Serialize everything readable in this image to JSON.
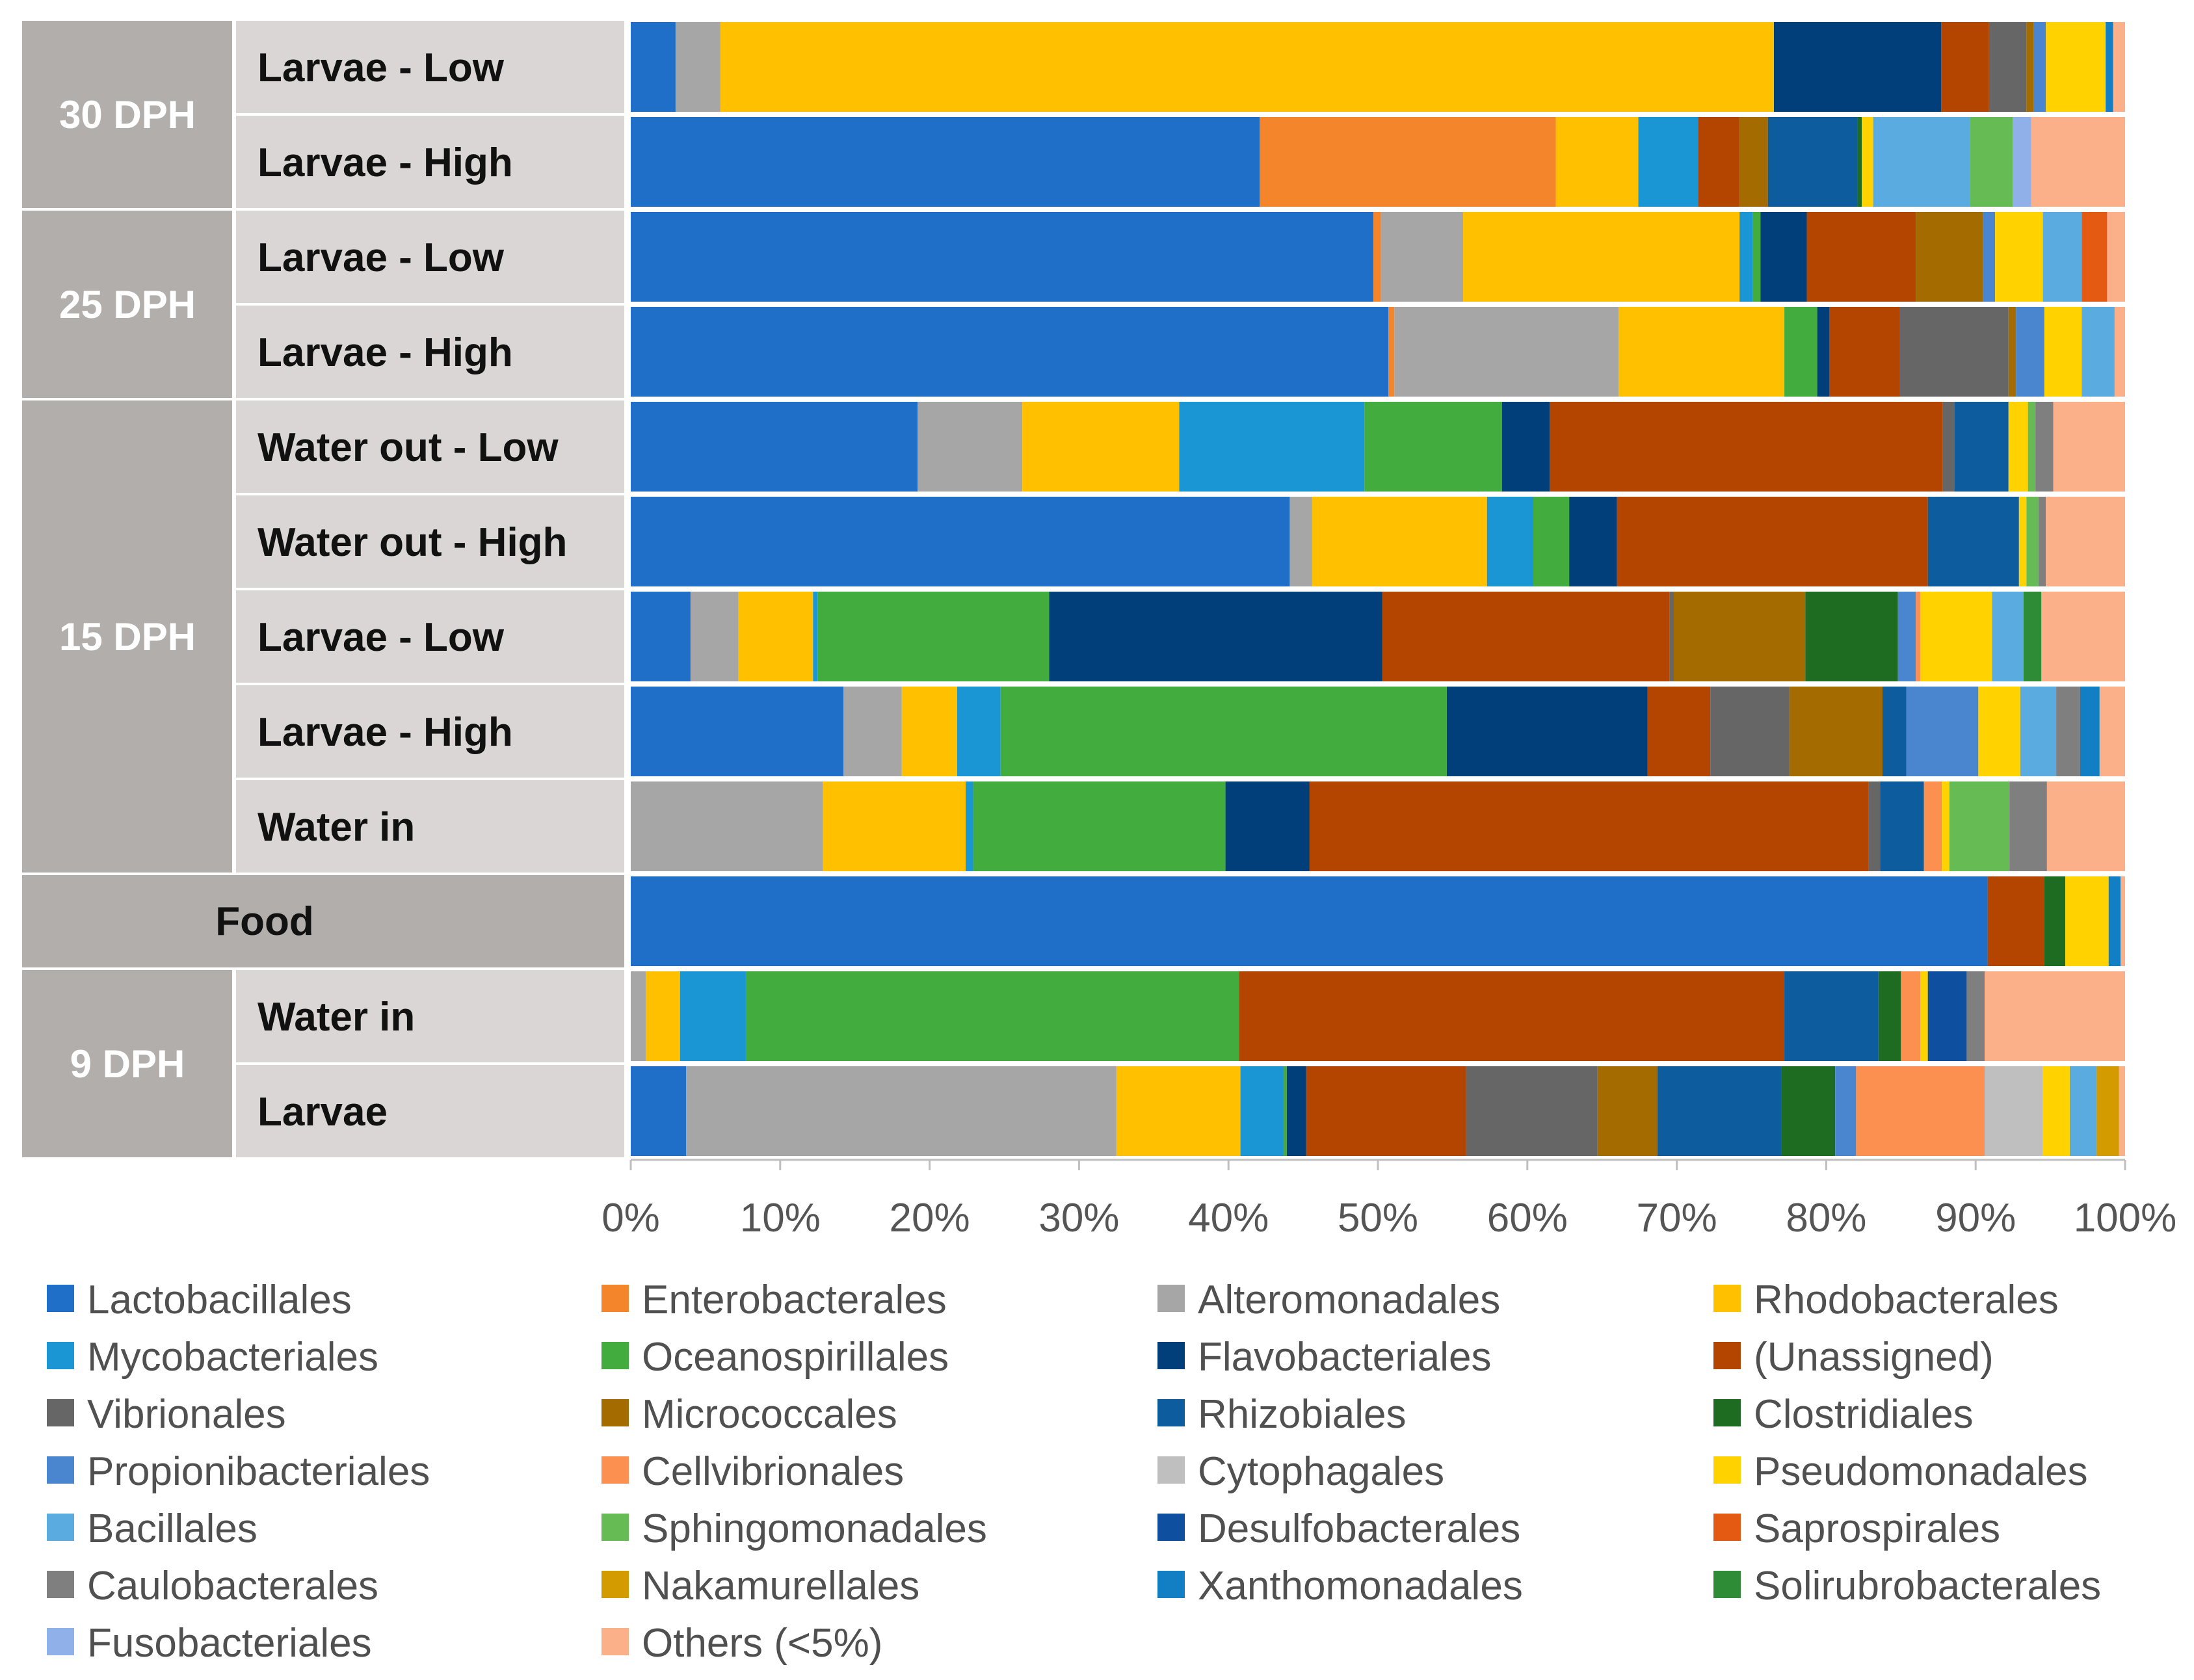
{
  "chart_data": {
    "type": "bar",
    "orientation": "horizontal",
    "stacked": "100%",
    "title": "",
    "xlabel": "",
    "ylabel": "",
    "xlim": [
      0,
      100
    ],
    "x_ticks": [
      "0%",
      "10%",
      "20%",
      "30%",
      "40%",
      "50%",
      "60%",
      "70%",
      "80%",
      "90%",
      "100%"
    ],
    "legend_position": "bottom",
    "groups": [
      {
        "label": "30 DPH",
        "rows": [
          "Larvae - Low",
          "Larvae - High"
        ]
      },
      {
        "label": "25 DPH",
        "rows": [
          "Larvae - Low",
          "Larvae - High"
        ]
      },
      {
        "label": "15 DPH",
        "rows": [
          "Water out - Low",
          "Water out - High",
          "Larvae - Low",
          "Larvae - High",
          "Water in"
        ]
      },
      {
        "label": "Food",
        "rows": []
      },
      {
        "label": "9 DPH",
        "rows": [
          "Water in",
          "Larvae"
        ]
      }
    ],
    "categories": [
      "30 DPH | Larvae - Low",
      "30 DPH | Larvae - High",
      "25 DPH | Larvae - Low",
      "25 DPH | Larvae - High",
      "15 DPH | Water out - Low",
      "15 DPH | Water out - High",
      "15 DPH | Larvae - Low",
      "15 DPH | Larvae - High",
      "15 DPH | Water in",
      "Food",
      "9 DPH | Water in",
      "9 DPH | Larvae"
    ],
    "series": [
      {
        "name": "Lactobacillales",
        "color": "#1f6fc8",
        "values": [
          3.0,
          44.2,
          49.7,
          50.7,
          19.2,
          44.1,
          4.0,
          14.2,
          0,
          90.8,
          0,
          3.7
        ]
      },
      {
        "name": "Enterobacterales",
        "color": "#f5852a",
        "values": [
          0,
          20.8,
          0.5,
          0.4,
          0,
          0,
          0,
          0,
          0,
          0,
          0,
          0
        ]
      },
      {
        "name": "Alteromonadales",
        "color": "#a6a6a6",
        "values": [
          3.0,
          0,
          5.5,
          15.0,
          7.0,
          1.5,
          3.2,
          3.9,
          12.8,
          0,
          1.0,
          28.8
        ]
      },
      {
        "name": "Rhodobacterales",
        "color": "#ffc000",
        "values": [
          70.5,
          5.8,
          18.5,
          11.1,
          10.5,
          11.7,
          5.0,
          3.7,
          9.5,
          0,
          2.3,
          8.3
        ]
      },
      {
        "name": "Mycobacteriales",
        "color": "#1a96d4",
        "values": [
          0,
          4.2,
          0.9,
          0,
          12.4,
          3.1,
          0.3,
          2.9,
          0.5,
          0,
          4.4,
          2.9
        ]
      },
      {
        "name": "Oceanospirillales",
        "color": "#42ad3e",
        "values": [
          0,
          0,
          0.5,
          2.2,
          9.2,
          2.4,
          15.5,
          29.8,
          16.8,
          0,
          33.0,
          0.2
        ]
      },
      {
        "name": "Flavobacteriales",
        "color": "#003f7a",
        "values": [
          11.2,
          0,
          3.1,
          0.8,
          3.2,
          3.2,
          22.3,
          13.4,
          5.6,
          0,
          0,
          1.3
        ]
      },
      {
        "name": "(Unassigned)",
        "color": "#b34500",
        "values": [
          3.2,
          2.9,
          7.3,
          4.7,
          26.3,
          20.8,
          19.2,
          4.2,
          37.2,
          3.8,
          36.5,
          10.7
        ]
      },
      {
        "name": "Vibrionales",
        "color": "#666666",
        "values": [
          2.5,
          0,
          0,
          7.3,
          0.8,
          0,
          0.3,
          5.3,
          0.8,
          0,
          0,
          8.8
        ]
      },
      {
        "name": "Micrococcales",
        "color": "#a36b00",
        "values": [
          0.5,
          2.0,
          4.5,
          0.5,
          0,
          0,
          8.8,
          6.2,
          0,
          0,
          0,
          4.0
        ]
      },
      {
        "name": "Rhizobiales",
        "color": "#0d5d9e",
        "values": [
          0,
          6.3,
          0,
          0,
          3.6,
          6.1,
          0,
          1.6,
          2.9,
          0,
          6.3,
          8.3
        ]
      },
      {
        "name": "Clostridiales",
        "color": "#1e6b22",
        "values": [
          0,
          0.3,
          0,
          0,
          0,
          0,
          6.2,
          0,
          0,
          1.4,
          1.5,
          3.6
        ]
      },
      {
        "name": "Propionibacteriales",
        "color": "#4a86d0",
        "values": [
          0.8,
          0,
          0.8,
          1.9,
          0,
          0,
          1.2,
          4.8,
          0,
          0,
          0,
          1.4
        ]
      },
      {
        "name": "Cellvibrionales",
        "color": "#fb9050",
        "values": [
          0,
          0,
          0,
          0,
          0,
          0,
          0.3,
          0,
          1.2,
          0,
          1.3,
          8.6
        ]
      },
      {
        "name": "Cytophagales",
        "color": "#bfbfbf",
        "values": [
          0,
          0,
          0,
          0,
          0,
          0,
          0,
          0,
          0,
          0,
          0,
          3.9
        ]
      },
      {
        "name": "Pseudomonadales",
        "color": "#ffd200",
        "values": [
          4.0,
          0.8,
          3.2,
          2.5,
          1.3,
          0.5,
          4.8,
          2.8,
          0.5,
          2.9,
          0.5,
          1.8
        ]
      },
      {
        "name": "Bacillales",
        "color": "#5aace0",
        "values": [
          0,
          6.8,
          2.6,
          2.2,
          0,
          0,
          2.1,
          2.4,
          0,
          0,
          0,
          1.8
        ]
      },
      {
        "name": "Sphingomonadales",
        "color": "#66bb55",
        "values": [
          0,
          3.0,
          0,
          0,
          0.5,
          0.8,
          0,
          0,
          4.0,
          0,
          0,
          0
        ]
      },
      {
        "name": "Desulfobacterales",
        "color": "#0f4fa0",
        "values": [
          0,
          0,
          0,
          0,
          0,
          0,
          0,
          0,
          0,
          0,
          2.6,
          0
        ]
      },
      {
        "name": "Saprospirales",
        "color": "#e55a12",
        "values": [
          0,
          0,
          1.7,
          0,
          0,
          0,
          0,
          0,
          0,
          0,
          0,
          0
        ]
      },
      {
        "name": "Caulobacterales",
        "color": "#7f7f7f",
        "values": [
          0,
          0,
          0,
          0,
          1.2,
          0.5,
          0,
          1.6,
          2.5,
          0,
          1.2,
          0
        ]
      },
      {
        "name": "Nakamurellales",
        "color": "#d49b00",
        "values": [
          0,
          0,
          0,
          0,
          0,
          0,
          0,
          0,
          0,
          0,
          0,
          1.5
        ]
      },
      {
        "name": "Xanthomonadales",
        "color": "#127fc4",
        "values": [
          0.5,
          0,
          0,
          0,
          0,
          0,
          0,
          1.3,
          0,
          0.8,
          0,
          0
        ]
      },
      {
        "name": "Solirubrobacterales",
        "color": "#2e8b36",
        "values": [
          0,
          0,
          0,
          0,
          0,
          0,
          1.2,
          0,
          0,
          0,
          0,
          0
        ]
      },
      {
        "name": "Fusobacteriales",
        "color": "#8fb0e8",
        "values": [
          0,
          1.3,
          0,
          0,
          0,
          0,
          0,
          0,
          0,
          0,
          0,
          0
        ]
      },
      {
        "name": "Others (<5%)",
        "color": "#fbb08a",
        "values": [
          0.8,
          6.6,
          1.2,
          0.7,
          4.8,
          5.3,
          5.6,
          1.7,
          5.2,
          0.3,
          9.4,
          0.4
        ]
      }
    ]
  }
}
